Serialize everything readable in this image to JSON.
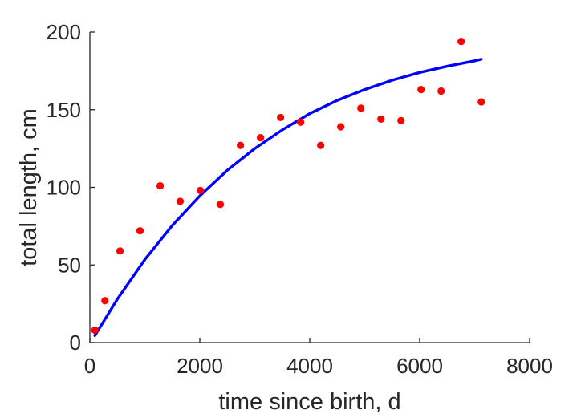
{
  "chart_data": {
    "type": "scatter",
    "xlabel": "time since birth, d",
    "ylabel": "total length, cm",
    "xlim": [
      0,
      8000
    ],
    "ylim": [
      0,
      200
    ],
    "xticks": [
      "0",
      "2000",
      "4000",
      "6000",
      "8000"
    ],
    "yticks": [
      "0",
      "50",
      "100",
      "150",
      "200"
    ],
    "grid": false,
    "box": false,
    "points": {
      "color": "#ff0000",
      "x": [
        91,
        274,
        548,
        913,
        1278,
        1643,
        2008,
        2373,
        2739,
        3104,
        3469,
        3834,
        4199,
        4564,
        4930,
        5295,
        5660,
        6025,
        6390,
        6755,
        7121
      ],
      "y": [
        8,
        27,
        59,
        72,
        101,
        91,
        98,
        89,
        127,
        132,
        145,
        142,
        127,
        139,
        151,
        144,
        143,
        163,
        162,
        194,
        155
      ]
    },
    "fit": {
      "color": "#0000ff",
      "x": [
        91,
        500,
        1000,
        1500,
        2000,
        2500,
        3000,
        3500,
        4000,
        4500,
        5000,
        5500,
        6000,
        6500,
        7000,
        7121
      ],
      "y": [
        4.5,
        28,
        53.5,
        75.5,
        94.5,
        111,
        125,
        137,
        147.5,
        156,
        163,
        169,
        174,
        178,
        181.5,
        182.5
      ]
    }
  }
}
